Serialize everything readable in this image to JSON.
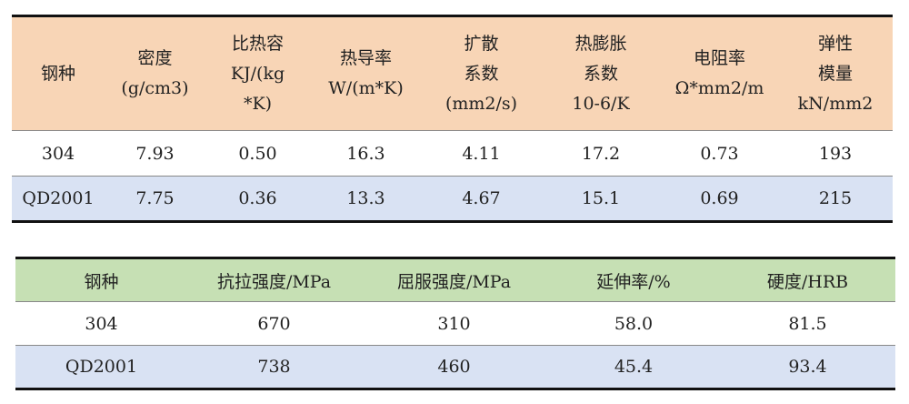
{
  "colors": {
    "table1_header": "#F8D5B6",
    "table2_header": "#C6E0B4",
    "alt_row": "#D9E2F3"
  },
  "table1": {
    "headers": [
      [
        "钢种"
      ],
      [
        "密度",
        "(g/cm3)"
      ],
      [
        "比热容",
        "KJ/(kg",
        "*K)"
      ],
      [
        "热导率",
        "W/(m*K)"
      ],
      [
        "扩散",
        "系数",
        "(mm2/s)"
      ],
      [
        "热膨胀",
        "系数",
        "10-6/K"
      ],
      [
        "电阻率",
        "Ω*mm2/m"
      ],
      [
        "弹性",
        "模量",
        "kN/mm2"
      ]
    ],
    "rows": [
      [
        "304",
        "7.93",
        "0.50",
        "16.3",
        "4.11",
        "17.2",
        "0.73",
        "193"
      ],
      [
        "QD2001",
        "7.75",
        "0.36",
        "13.3",
        "4.67",
        "15.1",
        "0.69",
        "215"
      ]
    ]
  },
  "table2": {
    "headers": [
      "钢种",
      "抗拉强度/MPa",
      "屈服强度/MPa",
      "延伸率/%",
      "硬度/HRB"
    ],
    "rows": [
      [
        "304",
        "670",
        "310",
        "58.0",
        "81.5"
      ],
      [
        "QD2001",
        "738",
        "460",
        "45.4",
        "93.4"
      ]
    ]
  }
}
